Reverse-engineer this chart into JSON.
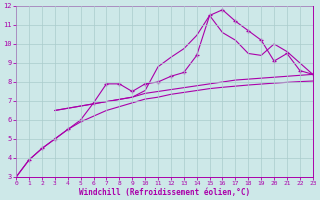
{
  "bg_color": "#cde8e8",
  "grid_color": "#aacccc",
  "line_color": "#aa00aa",
  "xlabel": "Windchill (Refroidissement éolien,°C)",
  "xlim": [
    0,
    23
  ],
  "ylim": [
    3,
    12
  ],
  "xticks": [
    0,
    1,
    2,
    3,
    4,
    5,
    6,
    7,
    8,
    9,
    10,
    11,
    12,
    13,
    14,
    15,
    16,
    17,
    18,
    19,
    20,
    21,
    22,
    23
  ],
  "yticks": [
    3,
    4,
    5,
    6,
    7,
    8,
    9,
    10,
    11,
    12
  ],
  "line1_x": [
    0,
    1,
    2,
    3,
    4,
    5,
    6,
    7,
    8,
    9,
    10,
    11,
    12,
    13,
    14,
    15,
    16,
    17,
    18,
    19,
    20,
    21,
    22,
    23
  ],
  "line1_y": [
    3.0,
    3.9,
    4.5,
    5.0,
    5.5,
    6.0,
    6.9,
    7.9,
    7.9,
    7.5,
    7.9,
    8.0,
    8.3,
    8.5,
    9.4,
    11.5,
    11.8,
    11.2,
    10.7,
    10.2,
    9.1,
    9.5,
    8.6,
    8.4
  ],
  "line2_x": [
    3,
    9,
    10,
    11,
    12,
    13,
    14,
    15,
    16,
    17,
    18,
    19,
    20,
    21,
    22,
    23
  ],
  "line2_y": [
    6.5,
    7.2,
    7.4,
    7.5,
    7.6,
    7.7,
    7.8,
    7.9,
    8.0,
    8.1,
    8.15,
    8.2,
    8.25,
    8.3,
    8.35,
    8.4
  ],
  "line3_x": [
    0,
    1,
    2,
    3,
    4,
    5,
    6,
    7,
    8,
    9,
    10,
    11,
    12,
    13,
    14,
    15,
    16,
    17,
    18,
    19,
    20,
    21,
    22,
    23
  ],
  "line3_y": [
    3.0,
    3.9,
    4.5,
    5.0,
    5.5,
    5.9,
    6.2,
    6.5,
    6.7,
    6.9,
    7.1,
    7.2,
    7.35,
    7.45,
    7.55,
    7.65,
    7.72,
    7.78,
    7.84,
    7.89,
    7.94,
    7.98,
    8.02,
    8.05
  ],
  "line4_x": [
    3,
    9,
    10,
    11,
    12,
    13,
    14,
    15,
    16,
    17,
    18,
    19,
    20,
    21,
    22,
    23
  ],
  "line4_y": [
    6.5,
    7.2,
    7.55,
    8.8,
    9.3,
    9.75,
    10.45,
    11.5,
    10.6,
    10.2,
    9.5,
    9.4,
    10.0,
    9.6,
    9.0,
    8.4
  ]
}
